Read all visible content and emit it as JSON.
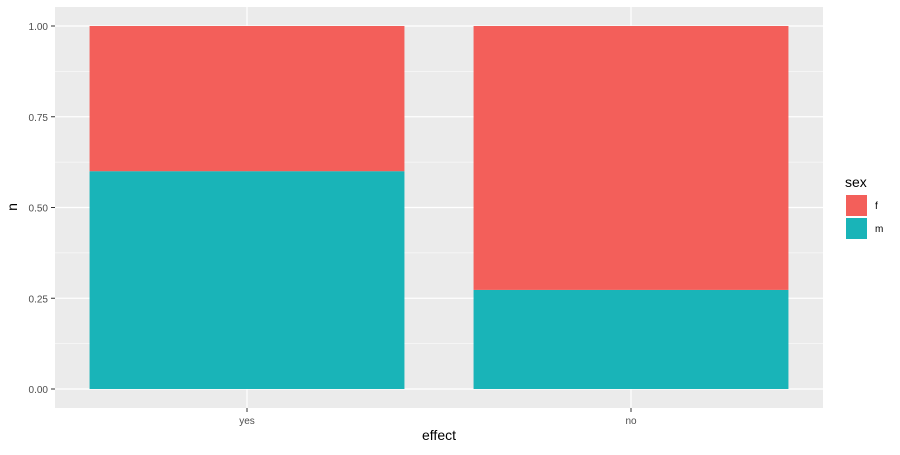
{
  "chart_data": {
    "type": "bar",
    "stacked": true,
    "categories": [
      "yes",
      "no"
    ],
    "series": [
      {
        "name": "m",
        "values": [
          0.6,
          0.273
        ],
        "color": "#19b4b8"
      },
      {
        "name": "f",
        "values": [
          0.4,
          0.727
        ],
        "color": "#f35f5a"
      }
    ],
    "xlabel": "effect",
    "ylabel": "n",
    "ylim": [
      0,
      1.0
    ],
    "yticks": [
      "0.00",
      "0.25",
      "0.50",
      "0.75",
      "1.00"
    ],
    "legend": {
      "title": "sex",
      "placement": "right",
      "entries": [
        "f",
        "m"
      ]
    },
    "grid": true,
    "panel_color": "#ebebeb"
  }
}
